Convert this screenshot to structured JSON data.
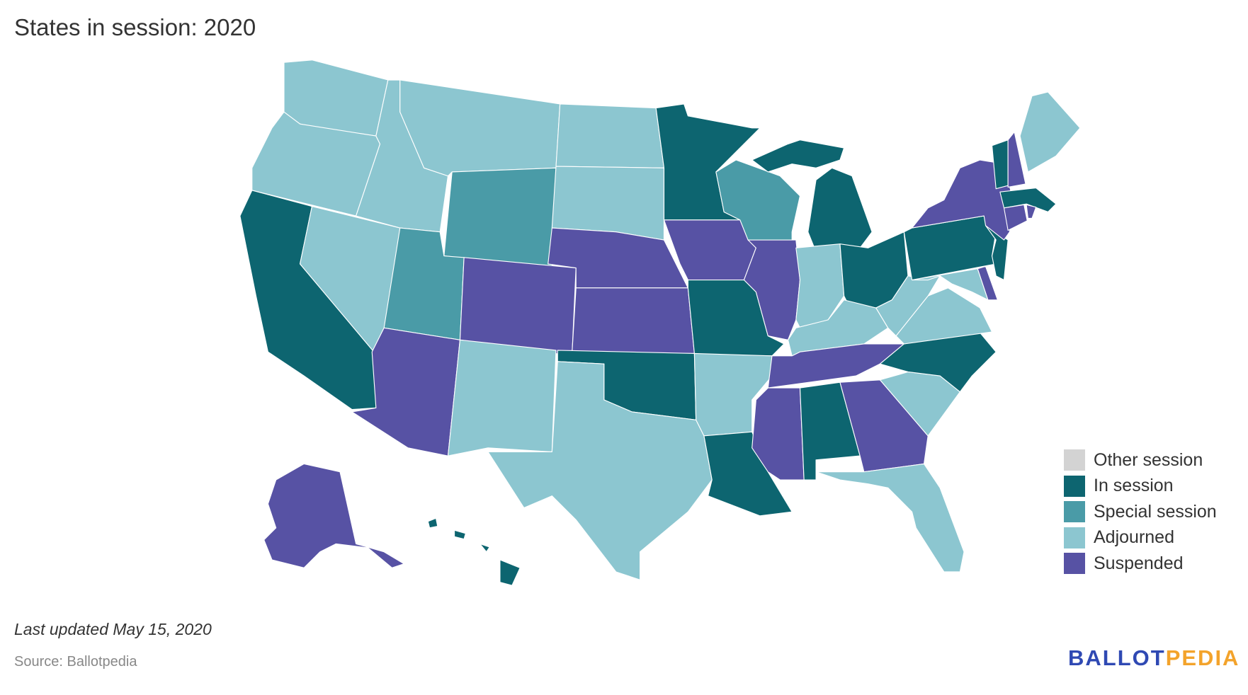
{
  "title": "States in session: 2020",
  "legend": [
    {
      "key": "other",
      "label": "Other session",
      "color": "#d3d3d3"
    },
    {
      "key": "in",
      "label": "In session",
      "color": "#0d6570"
    },
    {
      "key": "special",
      "label": "Special session",
      "color": "#4a9ba7"
    },
    {
      "key": "adjourned",
      "label": "Adjourned",
      "color": "#8cc6d0"
    },
    {
      "key": "suspended",
      "label": "Suspended",
      "color": "#5752a4"
    }
  ],
  "states": {
    "CA": "in",
    "MN": "in",
    "MI": "in",
    "OH": "in",
    "PA": "in",
    "NJ": "in",
    "VT": "in",
    "MA": "in",
    "MO": "in",
    "OK": "in",
    "LA": "in",
    "AL": "in",
    "NC": "in",
    "HI": "in",
    "WY": "special",
    "UT": "special",
    "WI": "special",
    "WA": "adjourned",
    "OR": "adjourned",
    "ID": "adjourned",
    "MT": "adjourned",
    "ND": "adjourned",
    "SD": "adjourned",
    "NV": "adjourned",
    "NM": "adjourned",
    "TX": "adjourned",
    "AR": "adjourned",
    "IN": "adjourned",
    "KY": "adjourned",
    "WV": "adjourned",
    "VA": "adjourned",
    "MD": "adjourned",
    "SC": "adjourned",
    "FL": "adjourned",
    "ME": "adjourned",
    "AK": "suspended",
    "AZ": "suspended",
    "CO": "suspended",
    "NE": "suspended",
    "KS": "suspended",
    "IA": "suspended",
    "IL": "suspended",
    "TN": "suspended",
    "MS": "suspended",
    "GA": "suspended",
    "NY": "suspended",
    "NH": "suspended",
    "CT": "suspended",
    "DE": "suspended",
    "RI": "suspended"
  },
  "footer": {
    "updated": "Last updated May 15, 2020",
    "source": "Source: Ballotpedia",
    "logo_part1": "BALLOT",
    "logo_part2": "PEDIA"
  }
}
